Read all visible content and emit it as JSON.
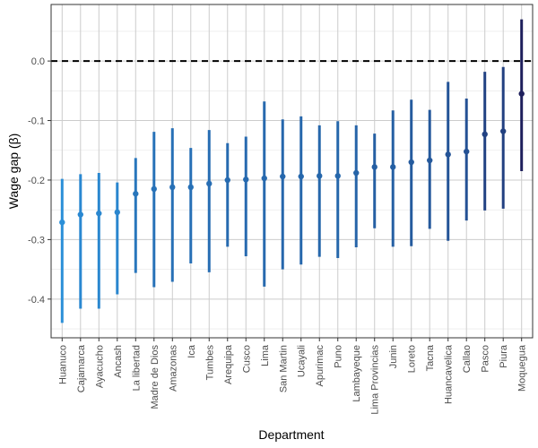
{
  "chart_data": {
    "type": "errorbar",
    "xlabel": "Department",
    "ylabel": "Wage gap (β)",
    "ylim": [
      -0.465,
      0.095
    ],
    "yticks": [
      -0.4,
      -0.3,
      -0.2,
      -0.1,
      0.0
    ],
    "ytick_labels": [
      "-0.4",
      "-0.3",
      "-0.2",
      "-0.1",
      "0.0"
    ],
    "reference_line": {
      "y": 0.0,
      "style": "dashed",
      "color": "#000000"
    },
    "grid": true,
    "color_scale": [
      "#2b8fd8",
      "#1e1f5c"
    ],
    "categories": [
      "Huanuco",
      "Cajamarca",
      "Ayacucho",
      "Ancash",
      "La libertad",
      "Madre de Dios",
      "Amazonas",
      "Ica",
      "Tumbes",
      "Arequipa",
      "Cusco",
      "Lima",
      "San Martin",
      "Ucayali",
      "Apurimac",
      "Puno",
      "Lambayeque",
      "Lima Provincias",
      "Junin",
      "Loreto",
      "Tacna",
      "Huancavelica",
      "Callao",
      "Pasco",
      "Piura",
      "Moquegua"
    ],
    "estimates": [
      -0.271,
      -0.258,
      -0.256,
      -0.254,
      -0.223,
      -0.215,
      -0.212,
      -0.212,
      -0.206,
      -0.2,
      -0.199,
      -0.197,
      -0.194,
      -0.194,
      -0.193,
      -0.193,
      -0.188,
      -0.178,
      -0.178,
      -0.17,
      -0.167,
      -0.157,
      -0.152,
      -0.123,
      -0.118,
      -0.055
    ],
    "lower": [
      -0.44,
      -0.416,
      -0.416,
      -0.392,
      -0.356,
      -0.38,
      -0.371,
      -0.34,
      -0.355,
      -0.312,
      -0.328,
      -0.379,
      -0.35,
      -0.342,
      -0.329,
      -0.331,
      -0.313,
      -0.281,
      -0.312,
      -0.311,
      -0.282,
      -0.302,
      -0.268,
      -0.251,
      -0.248,
      -0.185
    ],
    "upper": [
      -0.198,
      -0.19,
      -0.188,
      -0.204,
      -0.163,
      -0.119,
      -0.113,
      -0.146,
      -0.116,
      -0.138,
      -0.127,
      -0.068,
      -0.098,
      -0.093,
      -0.108,
      -0.101,
      -0.108,
      -0.122,
      -0.083,
      -0.065,
      -0.082,
      -0.035,
      -0.063,
      -0.018,
      -0.01,
      0.07
    ]
  }
}
